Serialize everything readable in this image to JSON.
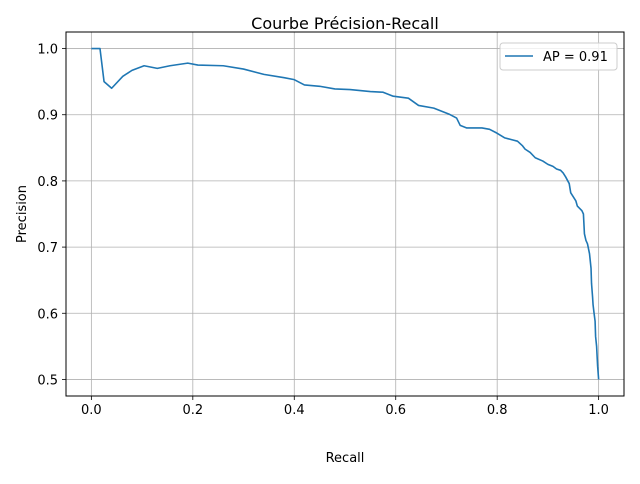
{
  "chart_data": {
    "type": "line",
    "title": "Courbe Précision-Recall",
    "xlabel": "Recall",
    "ylabel": "Precision",
    "xlim": [
      -0.05,
      1.05
    ],
    "ylim": [
      0.475,
      1.025
    ],
    "xticks": [
      0.0,
      0.2,
      0.4,
      0.6,
      0.8,
      1.0
    ],
    "xtick_labels": [
      "0.0",
      "0.2",
      "0.4",
      "0.6",
      "0.8",
      "1.0"
    ],
    "yticks": [
      0.5,
      0.6,
      0.7,
      0.8,
      0.9,
      1.0
    ],
    "ytick_labels": [
      "0.5",
      "0.6",
      "0.7",
      "0.8",
      "0.9",
      "1.0"
    ],
    "grid": true,
    "legend_position": "top-right",
    "series": [
      {
        "name": "AP = 0.91",
        "color": "#1f77b4",
        "x": [
          0.0,
          0.017,
          0.025,
          0.04,
          0.062,
          0.08,
          0.104,
          0.13,
          0.155,
          0.19,
          0.21,
          0.26,
          0.3,
          0.34,
          0.38,
          0.4,
          0.42,
          0.45,
          0.48,
          0.51,
          0.55,
          0.575,
          0.595,
          0.625,
          0.645,
          0.675,
          0.705,
          0.72,
          0.727,
          0.74,
          0.77,
          0.785,
          0.8,
          0.815,
          0.83,
          0.84,
          0.85,
          0.855,
          0.865,
          0.875,
          0.89,
          0.9,
          0.91,
          0.917,
          0.925,
          0.93,
          0.935,
          0.942,
          0.945,
          0.955,
          0.958,
          0.967,
          0.97,
          0.972,
          0.975,
          0.978,
          0.982,
          0.985,
          0.986,
          0.988,
          0.989,
          0.991,
          0.993,
          0.994,
          0.996,
          0.997,
          0.998,
          0.999,
          1.0
        ],
        "y": [
          1.0,
          1.0,
          0.95,
          0.94,
          0.958,
          0.967,
          0.974,
          0.97,
          0.974,
          0.978,
          0.975,
          0.974,
          0.969,
          0.961,
          0.956,
          0.953,
          0.945,
          0.943,
          0.939,
          0.938,
          0.935,
          0.934,
          0.928,
          0.925,
          0.914,
          0.91,
          0.901,
          0.895,
          0.884,
          0.88,
          0.88,
          0.878,
          0.872,
          0.865,
          0.862,
          0.86,
          0.853,
          0.848,
          0.843,
          0.835,
          0.83,
          0.825,
          0.822,
          0.818,
          0.816,
          0.812,
          0.806,
          0.796,
          0.782,
          0.77,
          0.762,
          0.755,
          0.75,
          0.72,
          0.71,
          0.705,
          0.69,
          0.668,
          0.645,
          0.625,
          0.613,
          0.6,
          0.588,
          0.565,
          0.55,
          0.535,
          0.52,
          0.51,
          0.5
        ]
      }
    ]
  }
}
